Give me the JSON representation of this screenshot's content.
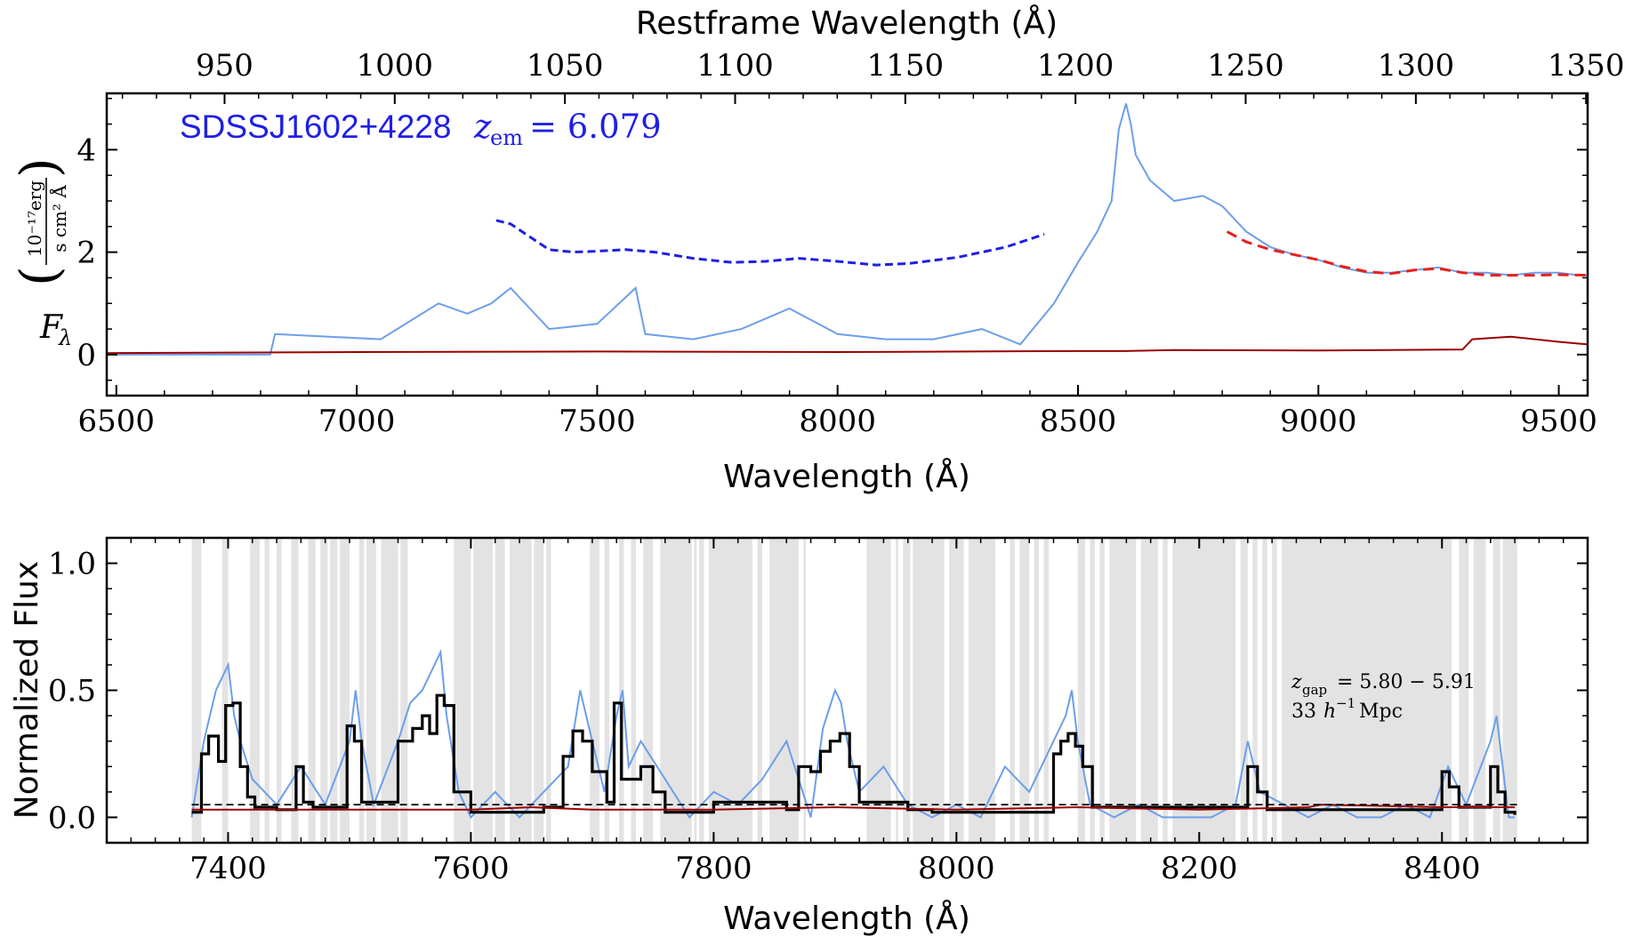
{
  "chart_data": [
    {
      "type": "line",
      "panel": "top",
      "title": "",
      "xlabel": "Wavelength (Å)",
      "top_xlabel": "Restframe Wavelength (Å)",
      "ylabel_symbol": "F",
      "ylabel_subscript": "λ",
      "ylabel_unit_numerator": "10⁻¹⁷erg",
      "ylabel_unit_denominator": "s cm² Å",
      "xlim": [
        6480,
        9560
      ],
      "ylim": [
        -0.8,
        5.1
      ],
      "xticks": [
        6500,
        7000,
        7500,
        8000,
        8500,
        9000,
        9500
      ],
      "yticks": [
        0,
        2,
        4
      ],
      "top_xticks": [
        950,
        1000,
        1050,
        1100,
        1150,
        1200,
        1250,
        1300,
        1350
      ],
      "z_em": 6.079,
      "annotation": {
        "name": "SDSSJ1602+4228",
        "label": "z",
        "sub": "em",
        "value": "= 6.079",
        "color": "#1f1fe6"
      },
      "series": [
        {
          "style": "observed flux",
          "color": "#6d9eea",
          "x": [
            6480,
            6820,
            6830,
            7050,
            7170,
            7230,
            7280,
            7320,
            7360,
            7400,
            7500,
            7580,
            7600,
            7700,
            7800,
            7900,
            8000,
            8100,
            8200,
            8300,
            8380,
            8450,
            8500,
            8540,
            8570,
            8585,
            8600,
            8610,
            8620,
            8650,
            8700,
            8760,
            8800,
            8850,
            8900,
            8950,
            9000,
            9050,
            9100,
            9150,
            9200,
            9250,
            9300,
            9320,
            9350,
            9400,
            9450,
            9500,
            9540,
            9560
          ],
          "y": [
            0.0,
            0.0,
            0.4,
            0.3,
            1.0,
            0.8,
            1.0,
            1.3,
            0.9,
            0.5,
            0.6,
            1.3,
            0.4,
            0.3,
            0.5,
            0.9,
            0.4,
            0.3,
            0.3,
            0.5,
            0.2,
            1.0,
            1.8,
            2.4,
            3.0,
            4.4,
            4.9,
            4.5,
            3.9,
            3.4,
            3.0,
            3.1,
            2.9,
            2.4,
            2.1,
            1.95,
            1.85,
            1.7,
            1.6,
            1.6,
            1.65,
            1.7,
            1.6,
            1.6,
            1.6,
            1.55,
            1.6,
            1.6,
            1.55,
            1.55
          ]
        },
        {
          "style": "noise",
          "color": "#9b0000",
          "x": [
            6480,
            7000,
            7500,
            8000,
            8500,
            8600,
            8700,
            9000,
            9300,
            9320,
            9400,
            9500,
            9560
          ],
          "y": [
            0.03,
            0.05,
            0.06,
            0.05,
            0.07,
            0.07,
            0.09,
            0.08,
            0.1,
            0.3,
            0.35,
            0.25,
            0.2
          ]
        },
        {
          "style": "continuum fit (dashed)",
          "color": "#e8201e",
          "x": [
            8810,
            8850,
            8900,
            8950,
            9000,
            9050,
            9100,
            9150,
            9200,
            9250,
            9300,
            9350,
            9400,
            9450,
            9500,
            9560
          ],
          "y": [
            2.4,
            2.2,
            2.05,
            1.95,
            1.85,
            1.72,
            1.62,
            1.58,
            1.65,
            1.68,
            1.6,
            1.55,
            1.55,
            1.55,
            1.56,
            1.55
          ]
        },
        {
          "style": "PCA continuum prediction (dashed)",
          "color": "#1f1fe6",
          "x": [
            7290,
            7320,
            7360,
            7400,
            7450,
            7500,
            7560,
            7620,
            7700,
            7780,
            7850,
            7920,
            8000,
            8080,
            8150,
            8250,
            8350,
            8430
          ],
          "y": [
            2.62,
            2.55,
            2.3,
            2.05,
            2.0,
            2.02,
            2.05,
            2.0,
            1.88,
            1.8,
            1.82,
            1.88,
            1.82,
            1.75,
            1.78,
            1.9,
            2.1,
            2.35
          ]
        }
      ]
    },
    {
      "type": "line",
      "panel": "bottom",
      "title": "",
      "xlabel": "Wavelength (Å)",
      "ylabel": "Normalized Flux",
      "xlim": [
        7300,
        8520
      ],
      "ylim": [
        -0.1,
        1.1
      ],
      "xticks": [
        7400,
        7600,
        7800,
        8000,
        8200,
        8400
      ],
      "yticks": [
        0.0,
        0.5,
        1.0
      ],
      "ytick_labels": [
        "0.0",
        "0.5",
        "1.0"
      ],
      "annotation": {
        "z_label": "z",
        "z_sub": "gap",
        "z_range": "= 5.80 − 5.91",
        "size_value": "33",
        "size_unit_symbol": "h",
        "size_unit_exponent": "−1",
        "size_unit_word": "Mpc"
      },
      "gap_bands": [
        [
          7370,
          7378
        ],
        [
          7395,
          7400
        ],
        [
          7418,
          7426
        ],
        [
          7430,
          7434
        ],
        [
          7440,
          7444
        ],
        [
          7452,
          7458
        ],
        [
          7466,
          7472
        ],
        [
          7476,
          7482
        ],
        [
          7484,
          7490
        ],
        [
          7492,
          7500
        ],
        [
          7508,
          7512
        ],
        [
          7514,
          7522
        ],
        [
          7526,
          7540
        ],
        [
          7542,
          7548
        ],
        [
          7586,
          7600
        ],
        [
          7602,
          7618
        ],
        [
          7620,
          7628
        ],
        [
          7632,
          7650
        ],
        [
          7652,
          7660
        ],
        [
          7662,
          7666
        ],
        [
          7698,
          7706
        ],
        [
          7710,
          7714
        ],
        [
          7722,
          7726
        ],
        [
          7732,
          7736
        ],
        [
          7742,
          7750
        ],
        [
          7756,
          7782
        ],
        [
          7784,
          7786
        ],
        [
          7788,
          7792
        ],
        [
          7796,
          7832
        ],
        [
          7836,
          7840
        ],
        [
          7846,
          7870
        ],
        [
          7874,
          7876
        ],
        [
          7926,
          7946
        ],
        [
          7950,
          7952
        ],
        [
          7956,
          7962
        ],
        [
          7964,
          7990
        ],
        [
          7994,
          8006
        ],
        [
          8010,
          8032
        ],
        [
          8044,
          8048
        ],
        [
          8052,
          8060
        ],
        [
          8064,
          8068
        ],
        [
          8072,
          8076
        ],
        [
          8100,
          8106
        ],
        [
          8110,
          8114
        ],
        [
          8118,
          8122
        ],
        [
          8126,
          8148
        ],
        [
          8152,
          8166
        ],
        [
          8170,
          8174
        ],
        [
          8178,
          8230
        ],
        [
          8234,
          8240
        ],
        [
          8244,
          8248
        ],
        [
          8252,
          8256
        ],
        [
          8260,
          8264
        ],
        [
          8268,
          8408
        ],
        [
          8414,
          8422
        ],
        [
          8426,
          8436
        ],
        [
          8442,
          8448
        ],
        [
          8450,
          8462
        ]
      ],
      "band_color": "#e3e3e3",
      "mean_flux_level": 0.05,
      "series": [
        {
          "style": "normalized flux",
          "color": "#6d9eea",
          "x": [
            7370,
            7380,
            7390,
            7400,
            7405,
            7410,
            7420,
            7440,
            7460,
            7480,
            7500,
            7505,
            7510,
            7520,
            7540,
            7550,
            7560,
            7570,
            7575,
            7580,
            7590,
            7600,
            7620,
            7640,
            7660,
            7680,
            7690,
            7695,
            7700,
            7710,
            7720,
            7725,
            7730,
            7740,
            7760,
            7780,
            7800,
            7820,
            7840,
            7860,
            7880,
            7890,
            7900,
            7905,
            7910,
            7920,
            7940,
            7960,
            7980,
            8000,
            8020,
            8040,
            8060,
            8080,
            8090,
            8095,
            8100,
            8110,
            8130,
            8150,
            8170,
            8190,
            8210,
            8230,
            8240,
            8250,
            8270,
            8290,
            8310,
            8330,
            8350,
            8370,
            8390,
            8405,
            8420,
            8440,
            8445,
            8455,
            8460
          ],
          "y": [
            0.0,
            0.3,
            0.5,
            0.6,
            0.4,
            0.3,
            0.15,
            0.05,
            0.2,
            0.05,
            0.3,
            0.5,
            0.3,
            0.05,
            0.3,
            0.45,
            0.5,
            0.6,
            0.65,
            0.4,
            0.1,
            0.0,
            0.1,
            0.0,
            0.1,
            0.2,
            0.5,
            0.4,
            0.3,
            0.1,
            0.4,
            0.5,
            0.2,
            0.3,
            0.15,
            0.0,
            0.1,
            0.05,
            0.15,
            0.3,
            0.0,
            0.35,
            0.5,
            0.45,
            0.3,
            0.1,
            0.2,
            0.05,
            0.0,
            0.05,
            0.0,
            0.2,
            0.1,
            0.3,
            0.4,
            0.5,
            0.3,
            0.05,
            0.0,
            0.05,
            0.0,
            0.0,
            0.0,
            0.05,
            0.3,
            0.1,
            0.05,
            0.0,
            0.05,
            0.0,
            0.0,
            0.05,
            0.0,
            0.2,
            0.05,
            0.3,
            0.4,
            0.0,
            0.0
          ]
        },
        {
          "style": "binned flux",
          "color": "#000000",
          "x": [
            7370,
            7378,
            7384,
            7392,
            7398,
            7404,
            7410,
            7416,
            7422,
            7440,
            7456,
            7462,
            7470,
            7498,
            7504,
            7510,
            7540,
            7552,
            7560,
            7566,
            7572,
            7578,
            7586,
            7600,
            7660,
            7676,
            7684,
            7692,
            7700,
            7712,
            7718,
            7724,
            7740,
            7750,
            7760,
            7800,
            7860,
            7870,
            7880,
            7888,
            7896,
            7904,
            7912,
            7920,
            7960,
            7980,
            8040,
            8080,
            8086,
            8092,
            8098,
            8104,
            8112,
            8240,
            8248,
            8256,
            8400,
            8406,
            8414,
            8440,
            8446,
            8452,
            8460
          ],
          "y": [
            0.02,
            0.25,
            0.32,
            0.22,
            0.44,
            0.45,
            0.2,
            0.08,
            0.04,
            0.03,
            0.2,
            0.06,
            0.04,
            0.36,
            0.3,
            0.06,
            0.3,
            0.35,
            0.4,
            0.33,
            0.48,
            0.44,
            0.1,
            0.02,
            0.04,
            0.24,
            0.34,
            0.3,
            0.18,
            0.06,
            0.45,
            0.15,
            0.2,
            0.1,
            0.02,
            0.06,
            0.03,
            0.2,
            0.18,
            0.26,
            0.3,
            0.33,
            0.2,
            0.06,
            0.03,
            0.02,
            0.02,
            0.25,
            0.3,
            0.33,
            0.28,
            0.2,
            0.04,
            0.2,
            0.1,
            0.03,
            0.18,
            0.12,
            0.04,
            0.2,
            0.1,
            0.02,
            0.01
          ]
        },
        {
          "style": "noise",
          "color": "#9b0000",
          "x": [
            7370,
            7500,
            7600,
            7650,
            7700,
            7800,
            7900,
            8000,
            8100,
            8200,
            8290,
            8300,
            8400,
            8460
          ],
          "y": [
            0.03,
            0.03,
            0.03,
            0.04,
            0.03,
            0.03,
            0.04,
            0.03,
            0.04,
            0.03,
            0.04,
            0.05,
            0.04,
            0.04
          ]
        }
      ]
    }
  ]
}
